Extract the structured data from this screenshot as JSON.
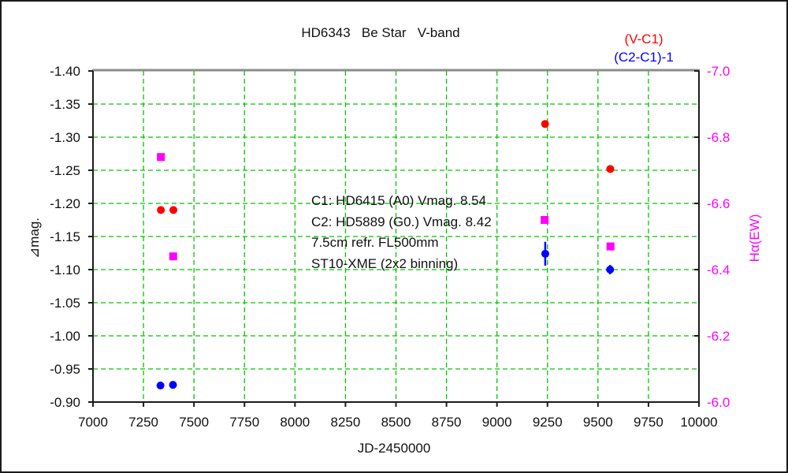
{
  "page": {
    "background": "#ffffff",
    "outer_border_color": "#1a1a1a"
  },
  "chart_data": {
    "type": "scatter",
    "title": "HD6343   Be Star   V-band",
    "legend": [
      {
        "label": "(V-C1)",
        "color": "#ff0000"
      },
      {
        "label": "(C2-C1)-1",
        "color": "#0000ff"
      }
    ],
    "grid": {
      "color": "#00c800",
      "style": "dashed",
      "on": true
    },
    "x_axis": {
      "label": "JD-2450000",
      "min": 7000,
      "max": 10000,
      "ticks": [
        7000,
        7250,
        7500,
        7750,
        8000,
        8250,
        8500,
        8750,
        9000,
        9250,
        9500,
        9750,
        10000
      ],
      "tick_labels": [
        "7000",
        "7250",
        "7500",
        "7750",
        "8000",
        "8250",
        "8500",
        "8750",
        "9000",
        "9250",
        "9500",
        "9750",
        "10000"
      ]
    },
    "y_axis_left": {
      "label": "⊿mag.",
      "top_value": -1.4,
      "bottom_value": -0.9,
      "inverted": true,
      "ticks": [
        -1.4,
        -1.35,
        -1.3,
        -1.25,
        -1.2,
        -1.15,
        -1.1,
        -1.05,
        -1.0,
        -0.95,
        -0.9
      ],
      "tick_labels": [
        "-1.40",
        "-1.35",
        "-1.30",
        "-1.25",
        "-1.20",
        "-1.15",
        "-1.10",
        "-1.05",
        "-1.00",
        "-0.95",
        "-0.90"
      ],
      "color": "#111111"
    },
    "y_axis_right": {
      "label": "Hα(EW)",
      "top_value": -7.0,
      "bottom_value": -6.0,
      "ticks": [
        -7.0,
        -6.8,
        -6.6,
        -6.4,
        -6.2,
        -6.0
      ],
      "tick_labels": [
        "-7.0",
        "-6.8",
        "-6.6",
        "-6.4",
        "-6.2",
        "-6.0"
      ],
      "color": "#ff00ff"
    },
    "series": [
      {
        "name": "(V-C1)",
        "axis": "left",
        "marker": "circle",
        "color": "#ff0000",
        "points": [
          {
            "x": 7336,
            "y": -1.19
          },
          {
            "x": 7398,
            "y": -1.19
          },
          {
            "x": 9238,
            "y": -1.32
          },
          {
            "x": 9561,
            "y": -1.252
          }
        ]
      },
      {
        "name": "(C2-C1)-1",
        "axis": "left",
        "marker": "circle",
        "color": "#0000ff",
        "points": [
          {
            "x": 7334,
            "y": -0.925
          },
          {
            "x": 7396,
            "y": -0.926
          },
          {
            "x": 9239,
            "y": -1.124,
            "yerr": 0.018
          },
          {
            "x": 9560,
            "y": -1.1,
            "yerr": 0.007
          }
        ]
      },
      {
        "name": "Hα(EW)",
        "axis": "right",
        "marker": "square",
        "color": "#ff00ff",
        "points": [
          {
            "x": 7336,
            "y": -6.74
          },
          {
            "x": 7397,
            "y": -6.44
          },
          {
            "x": 9236,
            "y": -6.55
          },
          {
            "x": 9562,
            "y": -6.47
          }
        ]
      }
    ],
    "annotation": {
      "lines": [
        "C1: HD6415 (A0) Vmag. 8.54",
        "C2: HD5889 (G0.) Vmag. 8.42",
        "7.5cm refr. FL500mm",
        "ST10-XME (2x2 binning)"
      ]
    }
  }
}
